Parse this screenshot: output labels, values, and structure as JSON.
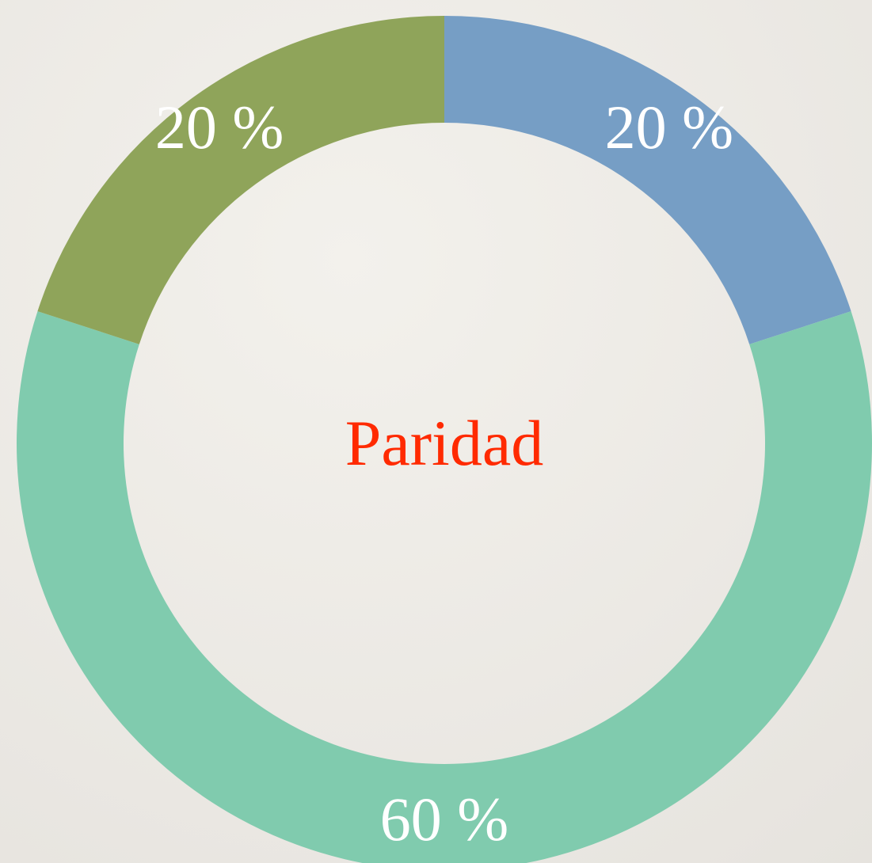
{
  "chart_data": {
    "type": "donut",
    "values": [
      20,
      60,
      20
    ],
    "value_labels": [
      "20 %",
      "60 %",
      "20 %"
    ],
    "colors": [
      "#769ec5",
      "#80cbae",
      "#8fa45a"
    ],
    "center_label": "Paridad"
  }
}
